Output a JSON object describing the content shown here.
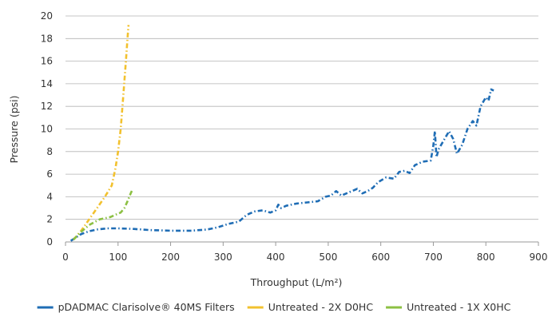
{
  "chart_data": {
    "type": "line",
    "xlabel": "Throughput (L/m²)",
    "ylabel": "Pressure (psi)",
    "xlim": [
      0,
      900
    ],
    "ylim": [
      0,
      20
    ],
    "x_ticks": [
      0,
      100,
      200,
      300,
      400,
      500,
      600,
      700,
      800,
      900
    ],
    "y_ticks": [
      0,
      2,
      4,
      6,
      8,
      10,
      12,
      14,
      16,
      18,
      20
    ],
    "grid": "horizontal",
    "legend_position": "bottom",
    "series": [
      {
        "name": "pDADMAC Clarisolve® 40MS Filters",
        "color": "#1f6db5",
        "dash": "dash-dot",
        "points": [
          [
            10,
            0.1
          ],
          [
            20,
            0.4
          ],
          [
            30,
            0.7
          ],
          [
            45,
            0.95
          ],
          [
            60,
            1.1
          ],
          [
            80,
            1.2
          ],
          [
            100,
            1.2
          ],
          [
            130,
            1.15
          ],
          [
            160,
            1.05
          ],
          [
            200,
            1.0
          ],
          [
            240,
            1.0
          ],
          [
            270,
            1.1
          ],
          [
            290,
            1.3
          ],
          [
            310,
            1.6
          ],
          [
            330,
            1.8
          ],
          [
            345,
            2.4
          ],
          [
            360,
            2.7
          ],
          [
            375,
            2.8
          ],
          [
            390,
            2.6
          ],
          [
            400,
            2.8
          ],
          [
            405,
            3.3
          ],
          [
            410,
            3.0
          ],
          [
            420,
            3.2
          ],
          [
            440,
            3.4
          ],
          [
            460,
            3.5
          ],
          [
            480,
            3.6
          ],
          [
            495,
            4.0
          ],
          [
            505,
            4.1
          ],
          [
            515,
            4.5
          ],
          [
            525,
            4.1
          ],
          [
            540,
            4.4
          ],
          [
            555,
            4.7
          ],
          [
            565,
            4.3
          ],
          [
            575,
            4.5
          ],
          [
            585,
            4.8
          ],
          [
            595,
            5.3
          ],
          [
            610,
            5.7
          ],
          [
            625,
            5.6
          ],
          [
            635,
            6.2
          ],
          [
            645,
            6.3
          ],
          [
            655,
            6.1
          ],
          [
            665,
            6.8
          ],
          [
            680,
            7.1
          ],
          [
            695,
            7.2
          ],
          [
            700,
            8.5
          ],
          [
            703,
            9.8
          ],
          [
            706,
            7.5
          ],
          [
            710,
            8.2
          ],
          [
            720,
            9.0
          ],
          [
            730,
            9.8
          ],
          [
            738,
            9.1
          ],
          [
            745,
            7.8
          ],
          [
            755,
            8.6
          ],
          [
            765,
            10.0
          ],
          [
            775,
            10.7
          ],
          [
            782,
            10.3
          ],
          [
            790,
            12.0
          ],
          [
            800,
            12.8
          ],
          [
            805,
            12.5
          ],
          [
            810,
            13.5
          ],
          [
            815,
            13.4
          ]
        ]
      },
      {
        "name": "Untreated - 2X D0HC",
        "color": "#f2c12e",
        "dash": "dash-dot",
        "points": [
          [
            15,
            0.2
          ],
          [
            30,
            1.0
          ],
          [
            45,
            2.0
          ],
          [
            60,
            3.0
          ],
          [
            75,
            4.0
          ],
          [
            88,
            5.0
          ],
          [
            95,
            6.5
          ],
          [
            100,
            8.0
          ],
          [
            105,
            10.0
          ],
          [
            110,
            13.0
          ],
          [
            115,
            16.0
          ],
          [
            118,
            18.0
          ],
          [
            120,
            19.2
          ]
        ]
      },
      {
        "name": "Untreated - 1X X0HC",
        "color": "#8cc043",
        "dash": "dash-dot",
        "points": [
          [
            15,
            0.2
          ],
          [
            30,
            0.9
          ],
          [
            45,
            1.5
          ],
          [
            65,
            2.0
          ],
          [
            85,
            2.2
          ],
          [
            95,
            2.4
          ],
          [
            105,
            2.6
          ],
          [
            112,
            3.0
          ],
          [
            118,
            3.6
          ],
          [
            124,
            4.3
          ],
          [
            128,
            4.7
          ]
        ]
      }
    ]
  },
  "colors": {
    "grid": "#b3b3b3",
    "axis": "#999999",
    "text": "#333333"
  }
}
